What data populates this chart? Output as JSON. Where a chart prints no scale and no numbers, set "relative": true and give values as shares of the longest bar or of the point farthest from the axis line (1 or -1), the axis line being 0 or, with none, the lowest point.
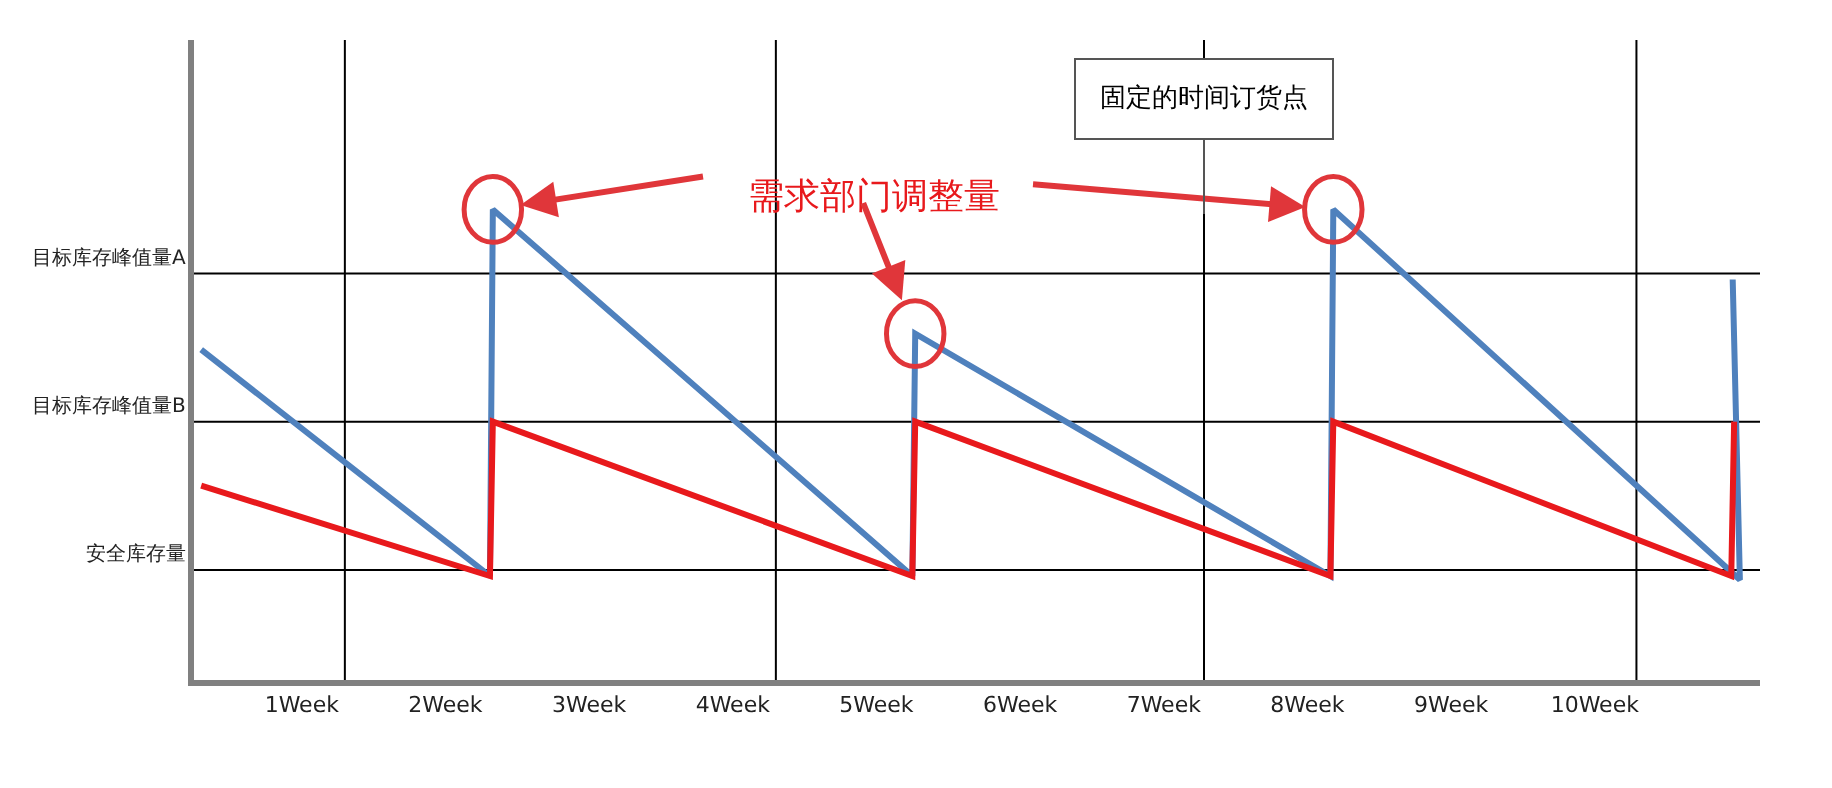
{
  "chart_data": {
    "type": "line",
    "relative": true,
    "series": [
      {
        "color": "#4f81bd",
        "x": [
          0.3,
          2.31,
          2.33,
          5.25,
          5.27,
          8.16,
          8.18,
          11.01,
          10.96
        ],
        "values": [
          0.702,
          0.221,
          1.0,
          0.221,
          0.736,
          0.221,
          1.0,
          0.213,
          0.851
        ]
      },
      {
        "color": "#e8191c",
        "x": [
          0.3,
          2.31,
          2.33,
          5.25,
          5.27,
          8.16,
          8.18,
          10.95,
          10.97
        ],
        "values": [
          0.413,
          0.221,
          0.549,
          0.221,
          0.549,
          0.221,
          0.549,
          0.221,
          0.549
        ]
      }
    ],
    "xlim": [
      0.25,
      11.15
    ],
    "xticks": [
      {
        "value": 1,
        "label": "1Week"
      },
      {
        "value": 2,
        "label": "2Week"
      },
      {
        "value": 3,
        "label": "3Week"
      },
      {
        "value": 4,
        "label": "4Week"
      },
      {
        "value": 5,
        "label": "5Week"
      },
      {
        "value": 6,
        "label": "6Week"
      },
      {
        "value": 7,
        "label": "7Week"
      },
      {
        "value": 8,
        "label": "8Week"
      },
      {
        "value": 9,
        "label": "9Week"
      },
      {
        "value": 10,
        "label": "10Week"
      }
    ],
    "ref_lines": [
      {
        "axis": "y",
        "value": 0.234,
        "label": "安全库存量",
        "color": "#000000"
      },
      {
        "axis": "y",
        "value": 0.549,
        "label": "目标库存峰值量B",
        "color": "#000000"
      },
      {
        "axis": "y",
        "value": 0.864,
        "label": "目标库存峰值量A",
        "color": "#000000"
      },
      {
        "axis": "x",
        "value": 1.3,
        "color": "#000000"
      },
      {
        "axis": "x",
        "value": 4.3,
        "color": "#000000"
      },
      {
        "axis": "x",
        "value": 7.28,
        "color": "#000000"
      },
      {
        "axis": "x",
        "value": 10.29,
        "color": "#000000"
      }
    ],
    "annotations": [
      "需求部门调整量",
      {
        "text": "固定的时间订货点",
        "x": 7.28,
        "y": 0.99
      }
    ],
    "marker": "none",
    "line_style": "solid"
  }
}
